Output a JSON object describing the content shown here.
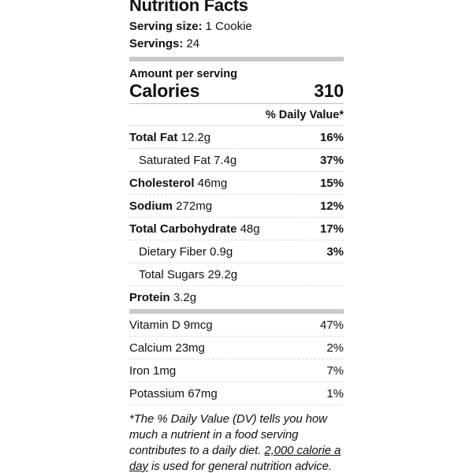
{
  "label": {
    "title": "Nutrition Facts",
    "serving_size_label": "Serving size:",
    "serving_size_value": "1 Cookie",
    "servings_label": "Servings:",
    "servings_value": "24",
    "amount_per_serving": "Amount per serving",
    "calories_label": "Calories",
    "calories_value": "310",
    "daily_value_header": "% Daily Value*",
    "nutrients": [
      {
        "name": "Total Fat",
        "amount": "12.2g",
        "dv": "16%",
        "bold": true,
        "indent": false
      },
      {
        "name": "Saturated Fat",
        "amount": "7.4g",
        "dv": "37%",
        "bold": false,
        "indent": true
      },
      {
        "name": "Cholesterol",
        "amount": "46mg",
        "dv": "15%",
        "bold": true,
        "indent": false
      },
      {
        "name": "Sodium",
        "amount": "272mg",
        "dv": "12%",
        "bold": true,
        "indent": false
      },
      {
        "name": "Total Carbohydrate",
        "amount": "48g",
        "dv": "17%",
        "bold": true,
        "indent": false
      },
      {
        "name": "Dietary Fiber",
        "amount": "0.9g",
        "dv": "3%",
        "bold": false,
        "indent": true
      },
      {
        "name": "Total Sugars",
        "amount": "29.2g",
        "dv": "",
        "bold": false,
        "indent": true
      },
      {
        "name": "Protein",
        "amount": "3.2g",
        "dv": "",
        "bold": true,
        "indent": false
      }
    ],
    "micronutrients": [
      {
        "name": "Vitamin D",
        "amount": "9mcg",
        "dv": "47%"
      },
      {
        "name": "Calcium",
        "amount": "23mg",
        "dv": "2%"
      },
      {
        "name": "Iron",
        "amount": "1mg",
        "dv": "7%"
      },
      {
        "name": "Potassium",
        "amount": "67mg",
        "dv": "1%"
      }
    ],
    "footnote": {
      "before": "*The % Daily Value (DV) tells you how much a nutrient in a food serving contributes to a daily diet. ",
      "underlined": "2,000 calorie a day",
      "after": " is used for general nutrition advice."
    }
  },
  "colors": {
    "text": "#111111",
    "thick_bar": "#c9c9c9",
    "solid_line": "#bfbfbf",
    "dashed_line": "#dcdcdc",
    "background": "#ffffff"
  }
}
